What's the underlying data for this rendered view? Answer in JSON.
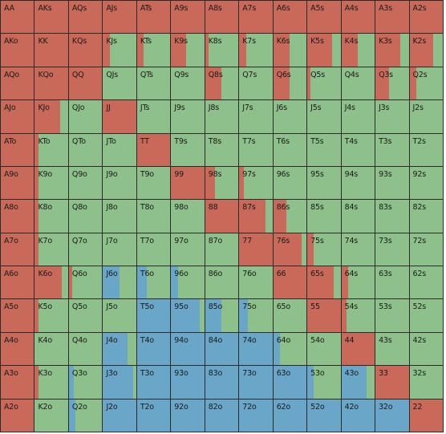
{
  "colors": {
    "raise": "#c8695a",
    "call": "#8dc08a",
    "fold": "#69a6c8"
  },
  "ranks": [
    "A",
    "K",
    "Q",
    "J",
    "T",
    "9",
    "8",
    "7",
    "6",
    "5",
    "4",
    "3",
    "2"
  ],
  "rows": [
    [
      [
        "AA",
        1,
        0
      ],
      [
        "AKs",
        1,
        0
      ],
      [
        "AQs",
        1,
        0
      ],
      [
        "AJs",
        1,
        0
      ],
      [
        "ATs",
        1,
        0
      ],
      [
        "A9s",
        1,
        0
      ],
      [
        "A8s",
        1,
        0
      ],
      [
        "A7s",
        1,
        0
      ],
      [
        "A6s",
        1,
        0
      ],
      [
        "A5s",
        1,
        0
      ],
      [
        "A4s",
        1,
        0
      ],
      [
        "A3s",
        1,
        0
      ],
      [
        "A2s",
        1,
        0
      ]
    ],
    [
      [
        "AKo",
        1,
        0
      ],
      [
        "KK",
        1,
        0
      ],
      [
        "KQs",
        1,
        0
      ],
      [
        "KJs",
        0.2,
        0
      ],
      [
        "KTs",
        0.2,
        0
      ],
      [
        "K9s",
        0.45,
        0
      ],
      [
        "K8s",
        0.1,
        0
      ],
      [
        "K7s",
        0.2,
        0
      ],
      [
        "K6s",
        0.5,
        0
      ],
      [
        "K5s",
        0.75,
        0
      ],
      [
        "K4s",
        0.5,
        0
      ],
      [
        "K3s",
        0.75,
        0
      ],
      [
        "K2s",
        0.7,
        0
      ]
    ],
    [
      [
        "AQo",
        1,
        0
      ],
      [
        "KQo",
        1,
        0
      ],
      [
        "QQ",
        1,
        0
      ],
      [
        "QJs",
        0,
        0
      ],
      [
        "QTs",
        0,
        0
      ],
      [
        "Q9s",
        0,
        0
      ],
      [
        "Q8s",
        0.5,
        0
      ],
      [
        "Q7s",
        0,
        0
      ],
      [
        "Q6s",
        0.5,
        0
      ],
      [
        "Q5s",
        0.1,
        0
      ],
      [
        "Q4s",
        0,
        0
      ],
      [
        "Q3s",
        0.4,
        0
      ],
      [
        "Q2s",
        0.2,
        0
      ]
    ],
    [
      [
        "AJo",
        1,
        0
      ],
      [
        "KJo",
        0.75,
        0
      ],
      [
        "QJo",
        0,
        0
      ],
      [
        "JJ",
        1,
        0
      ],
      [
        "JTs",
        0,
        0
      ],
      [
        "J9s",
        0,
        0
      ],
      [
        "J8s",
        0,
        0
      ],
      [
        "J7s",
        0,
        0
      ],
      [
        "J6s",
        0,
        0
      ],
      [
        "J5s",
        0,
        0
      ],
      [
        "J4s",
        0,
        0
      ],
      [
        "J3s",
        0,
        0
      ],
      [
        "J2s",
        0,
        0
      ]
    ],
    [
      [
        "ATo",
        1,
        0
      ],
      [
        "KTo",
        0.1,
        0
      ],
      [
        "QTo",
        0,
        0
      ],
      [
        "JTo",
        0,
        0
      ],
      [
        "TT",
        1,
        0
      ],
      [
        "T9s",
        0,
        0
      ],
      [
        "T8s",
        0,
        0
      ],
      [
        "T7s",
        0,
        0
      ],
      [
        "T6s",
        0,
        0
      ],
      [
        "T5s",
        0,
        0
      ],
      [
        "T4s",
        0,
        0
      ],
      [
        "T3s",
        0,
        0
      ],
      [
        "T2s",
        0,
        0
      ]
    ],
    [
      [
        "A9o",
        1,
        0
      ],
      [
        "K9o",
        0.1,
        0
      ],
      [
        "Q9o",
        0,
        0
      ],
      [
        "J9o",
        0,
        0
      ],
      [
        "T9o",
        0,
        0
      ],
      [
        "99",
        1,
        0
      ],
      [
        "98s",
        0.3,
        0
      ],
      [
        "97s",
        0.15,
        0
      ],
      [
        "96s",
        0,
        0
      ],
      [
        "95s",
        0,
        0
      ],
      [
        "94s",
        0,
        0
      ],
      [
        "93s",
        0,
        0
      ],
      [
        "92s",
        0,
        0
      ]
    ],
    [
      [
        "A8o",
        1,
        0
      ],
      [
        "K8o",
        0.1,
        0
      ],
      [
        "Q8o",
        0,
        0
      ],
      [
        "J8o",
        0,
        0
      ],
      [
        "T8o",
        0,
        0
      ],
      [
        "98o",
        0,
        0
      ],
      [
        "88",
        1,
        0
      ],
      [
        "87s",
        0.8,
        0
      ],
      [
        "86s",
        0.4,
        0
      ],
      [
        "85s",
        0,
        0
      ],
      [
        "84s",
        0,
        0
      ],
      [
        "83s",
        0,
        0
      ],
      [
        "82s",
        0,
        0
      ]
    ],
    [
      [
        "A7o",
        1,
        0
      ],
      [
        "K7o",
        0.1,
        0
      ],
      [
        "Q7o",
        0,
        0
      ],
      [
        "J7o",
        0,
        0
      ],
      [
        "T7o",
        0,
        0
      ],
      [
        "97o",
        0,
        0
      ],
      [
        "87o",
        0,
        0
      ],
      [
        "77",
        1,
        0
      ],
      [
        "76s",
        0.85,
        0
      ],
      [
        "75s",
        0.2,
        0
      ],
      [
        "74s",
        0,
        0
      ],
      [
        "73s",
        0,
        0
      ],
      [
        "72s",
        0,
        0
      ]
    ],
    [
      [
        "A6o",
        1,
        0
      ],
      [
        "K6o",
        0.8,
        0
      ],
      [
        "Q6o",
        0.1,
        0
      ],
      [
        "J6o",
        0,
        0.5
      ],
      [
        "T6o",
        0,
        0.3
      ],
      [
        "96o",
        0,
        0.2
      ],
      [
        "86o",
        0,
        0
      ],
      [
        "76o",
        0,
        0
      ],
      [
        "66",
        1,
        0
      ],
      [
        "65s",
        0.8,
        0
      ],
      [
        "64s",
        0.2,
        0
      ],
      [
        "63s",
        0,
        0
      ],
      [
        "62s",
        0,
        0
      ]
    ],
    [
      [
        "A5o",
        1,
        0
      ],
      [
        "K5o",
        0.1,
        0
      ],
      [
        "Q5o",
        0,
        0
      ],
      [
        "J5o",
        0,
        0
      ],
      [
        "T5o",
        0,
        1
      ],
      [
        "95o",
        0,
        0.85
      ],
      [
        "85o",
        0,
        0.5
      ],
      [
        "75o",
        0,
        0.25
      ],
      [
        "65o",
        0,
        0
      ],
      [
        "55",
        1,
        0
      ],
      [
        "54s",
        0.15,
        0
      ],
      [
        "53s",
        0,
        0
      ],
      [
        "52s",
        0,
        0
      ]
    ],
    [
      [
        "A4o",
        1,
        0
      ],
      [
        "K4o",
        0,
        0
      ],
      [
        "Q4o",
        0,
        0
      ],
      [
        "J4o",
        0,
        0.75
      ],
      [
        "T4o",
        0,
        1
      ],
      [
        "94o",
        0,
        1
      ],
      [
        "84o",
        0,
        1
      ],
      [
        "74o",
        0,
        1
      ],
      [
        "64o",
        0,
        0.2
      ],
      [
        "54o",
        0,
        0
      ],
      [
        "44",
        1,
        0
      ],
      [
        "43s",
        0,
        0
      ],
      [
        "42s",
        0,
        0
      ]
    ],
    [
      [
        "A3o",
        1,
        0
      ],
      [
        "K3o",
        0.1,
        0
      ],
      [
        "Q3o",
        0,
        0.15
      ],
      [
        "J3o",
        0,
        0.9
      ],
      [
        "T3o",
        0,
        1
      ],
      [
        "93o",
        0,
        1
      ],
      [
        "83o",
        0,
        1
      ],
      [
        "73o",
        0,
        1
      ],
      [
        "63o",
        0,
        1
      ],
      [
        "53o",
        0,
        0.2
      ],
      [
        "43o",
        0,
        0.75
      ],
      [
        "33",
        1,
        0
      ],
      [
        "32s",
        0,
        0
      ]
    ],
    [
      [
        "A2o",
        1,
        0
      ],
      [
        "K2o",
        0,
        0
      ],
      [
        "Q2o",
        0,
        0.2
      ],
      [
        "J2o",
        0,
        1
      ],
      [
        "T2o",
        0,
        1
      ],
      [
        "92o",
        0,
        1
      ],
      [
        "82o",
        0,
        1
      ],
      [
        "72o",
        0,
        1
      ],
      [
        "62o",
        0,
        1
      ],
      [
        "52o",
        0,
        1
      ],
      [
        "42o",
        0,
        1
      ],
      [
        "32o",
        0,
        1
      ],
      [
        "22",
        1,
        0
      ]
    ]
  ]
}
